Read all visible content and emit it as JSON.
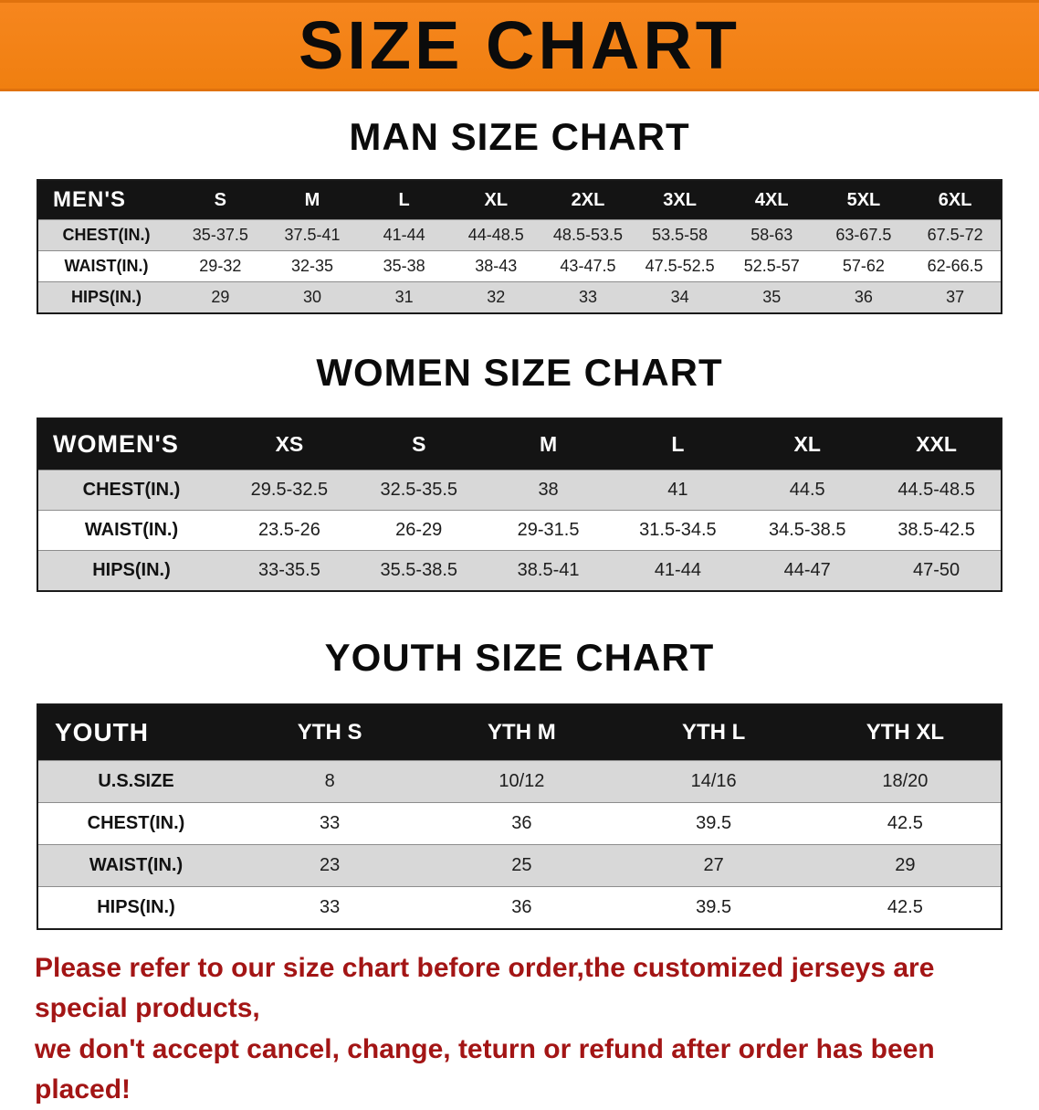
{
  "banner": {
    "title": "SIZE CHART"
  },
  "sections": [
    {
      "heading": "MAN SIZE CHART",
      "table": {
        "header": [
          "MEN'S",
          "S",
          "M",
          "L",
          "XL",
          "2XL",
          "3XL",
          "4XL",
          "5XL",
          "6XL"
        ],
        "rows": [
          [
            "CHEST(IN.)",
            "35-37.5",
            "37.5-41",
            "41-44",
            "44-48.5",
            "48.5-53.5",
            "53.5-58",
            "58-63",
            "63-67.5",
            "67.5-72"
          ],
          [
            "WAIST(IN.)",
            "29-32",
            "32-35",
            "35-38",
            "38-43",
            "43-47.5",
            "47.5-52.5",
            "52.5-57",
            "57-62",
            "62-66.5"
          ],
          [
            "HIPS(IN.)",
            "29",
            "30",
            "31",
            "32",
            "33",
            "34",
            "35",
            "36",
            "37"
          ]
        ]
      }
    },
    {
      "heading": "WOMEN SIZE CHART",
      "table": {
        "header": [
          "WOMEN'S",
          "XS",
          "S",
          "M",
          "L",
          "XL",
          "XXL"
        ],
        "rows": [
          [
            "CHEST(IN.)",
            "29.5-32.5",
            "32.5-35.5",
            "38",
            "41",
            "44.5",
            "44.5-48.5"
          ],
          [
            "WAIST(IN.)",
            "23.5-26",
            "26-29",
            "29-31.5",
            "31.5-34.5",
            "34.5-38.5",
            "38.5-42.5"
          ],
          [
            "HIPS(IN.)",
            "33-35.5",
            "35.5-38.5",
            "38.5-41",
            "41-44",
            "44-47",
            "47-50"
          ]
        ]
      }
    },
    {
      "heading": "YOUTH SIZE CHART",
      "table": {
        "header": [
          "YOUTH",
          "YTH S",
          "YTH M",
          "YTH L",
          "YTH XL"
        ],
        "rows": [
          [
            "U.S.SIZE",
            "8",
            "10/12",
            "14/16",
            "18/20"
          ],
          [
            "CHEST(IN.)",
            "33",
            "36",
            "39.5",
            "42.5"
          ],
          [
            "WAIST(IN.)",
            "23",
            "25",
            "27",
            "29"
          ],
          [
            "HIPS(IN.)",
            "33",
            "36",
            "39.5",
            "42.5"
          ]
        ]
      }
    }
  ],
  "disclaimer": {
    "line1": "Please refer to our size chart before order,the customized jerseys are special products,",
    "line2": "we don't accept cancel, change, teturn or refund after order has been placed!"
  },
  "colors": {
    "banner_orange": "#f6861e",
    "table_header_black": "#141414",
    "row_stripe_gray": "#d8d8d8",
    "disclaimer_red": "#a31515",
    "title_black": "#0b0b0b"
  }
}
